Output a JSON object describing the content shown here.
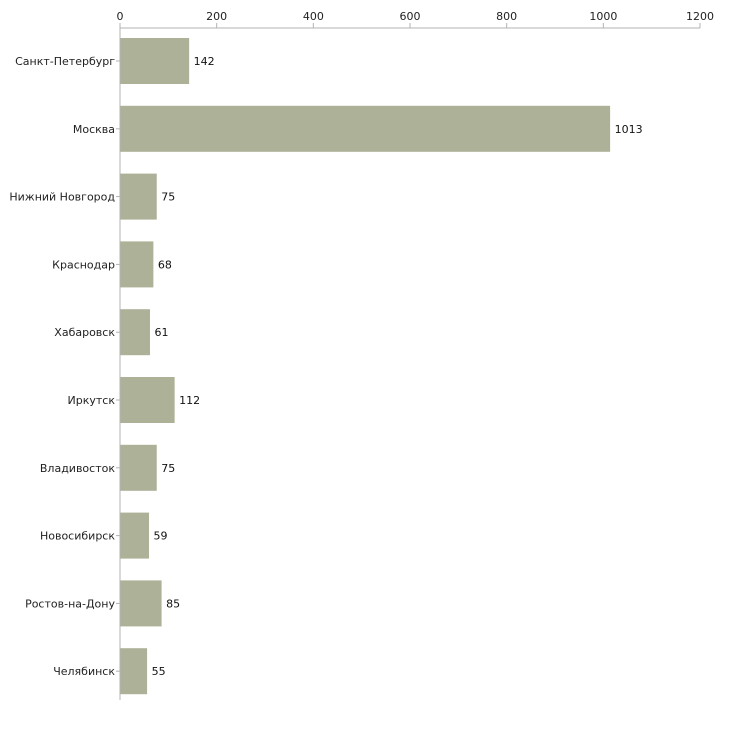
{
  "chart_data": {
    "type": "bar",
    "orientation": "horizontal",
    "title": "",
    "xlabel": "",
    "ylabel": "",
    "xlim": [
      0,
      1200
    ],
    "ticks": [
      0,
      200,
      400,
      600,
      800,
      1000,
      1200
    ],
    "tick_labels": [
      "0",
      "200",
      "400",
      "600",
      "800",
      "1000",
      "1200"
    ],
    "grid": false,
    "bar_color": "#adb197",
    "axis_color": "#b3b3b3",
    "categories": [
      "Санкт-Петербург",
      "Москва",
      "Нижний Новгород",
      "Краснодар",
      "Хабаровск",
      "Иркутск",
      "Владивосток",
      "Новосибирск",
      "Ростов-на-Дону",
      "Челябинск"
    ],
    "values": [
      142,
      1013,
      75,
      68,
      61,
      112,
      75,
      59,
      85,
      55
    ],
    "value_labels": [
      "142",
      "1013",
      "75",
      "68",
      "61",
      "112",
      "75",
      "59",
      "85",
      "55"
    ]
  }
}
